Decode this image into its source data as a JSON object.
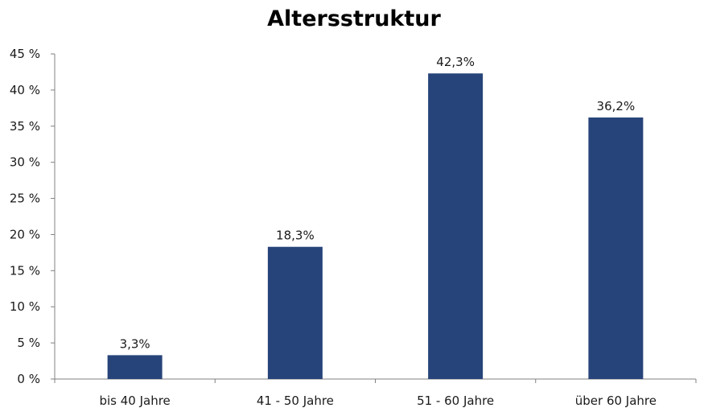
{
  "chart_data": {
    "type": "bar",
    "title": "Altersstruktur",
    "xlabel": "",
    "ylabel": "",
    "categories": [
      "bis 40 Jahre",
      "41 - 50 Jahre",
      "51 - 60 Jahre",
      "über 60 Jahre"
    ],
    "values": [
      3.3,
      18.3,
      42.3,
      36.2
    ],
    "data_labels": [
      "3,3%",
      "18,3%",
      "42,3%",
      "36,2%"
    ],
    "ylim": [
      0,
      45
    ],
    "yticks": [
      0,
      5,
      10,
      15,
      20,
      25,
      30,
      35,
      40,
      45
    ],
    "ytick_labels": [
      "0 %",
      "5 %",
      "10 %",
      "15 %",
      "20 %",
      "25 %",
      "30 %",
      "35 %",
      "40 %",
      "45 %"
    ],
    "grid": false,
    "legend": "none",
    "bar_color": "#27447A"
  }
}
